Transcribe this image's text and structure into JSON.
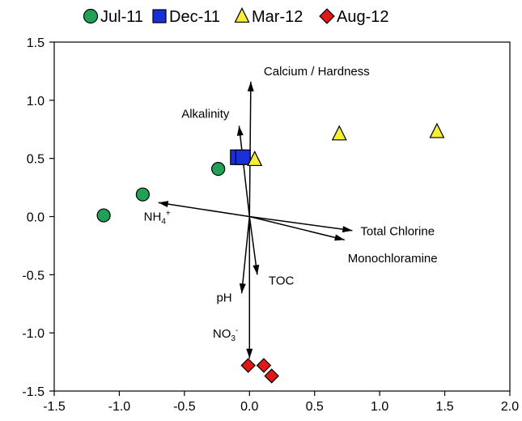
{
  "chart_data": {
    "type": "scatter",
    "title": "",
    "xlabel": "",
    "ylabel": "",
    "xlim": [
      -1.5,
      2.0
    ],
    "ylim": [
      -1.5,
      1.5
    ],
    "x_ticks": [
      -1.5,
      -1.0,
      -0.5,
      0.0,
      0.5,
      1.0,
      1.5,
      2.0
    ],
    "y_ticks": [
      -1.5,
      -1.0,
      -0.5,
      0.0,
      0.5,
      1.0,
      1.5
    ],
    "x_tick_labels": [
      "-1.5",
      "-1.0",
      "-0.5",
      "0.0",
      "0.5",
      "1.0",
      "1.5",
      "2.0"
    ],
    "y_tick_labels": [
      "-1.5",
      "-1.0",
      "-0.5",
      "0.0",
      "0.5",
      "1.0",
      "1.5"
    ],
    "grid": false,
    "legend_position": "top",
    "series": [
      {
        "name": "Jul-11",
        "marker": "circle",
        "color": "#22a055",
        "points": [
          [
            -1.12,
            0.01
          ],
          [
            -0.82,
            0.19
          ],
          [
            -0.24,
            0.41
          ]
        ]
      },
      {
        "name": "Dec-11",
        "marker": "square",
        "color": "#1a2fd6",
        "points": [
          [
            -0.09,
            0.51
          ],
          [
            -0.05,
            0.51
          ]
        ]
      },
      {
        "name": "Mar-12",
        "marker": "triangle",
        "color": "#f5ee31",
        "points": [
          [
            0.04,
            0.49
          ],
          [
            0.69,
            0.71
          ],
          [
            1.44,
            0.73
          ]
        ]
      },
      {
        "name": "Aug-12",
        "marker": "diamond",
        "color": "#e01818",
        "points": [
          [
            -0.01,
            -1.28
          ],
          [
            0.11,
            -1.28
          ],
          [
            0.17,
            -1.37
          ]
        ]
      }
    ],
    "vectors": [
      {
        "label": "Calcium / Hardness",
        "sup": "",
        "sub": "",
        "end": [
          0.01,
          1.16
        ]
      },
      {
        "label": "Alkalinity",
        "sup": "",
        "sub": "",
        "end": [
          -0.08,
          0.78
        ]
      },
      {
        "label": "NH",
        "sub": "4",
        "sup": "+",
        "end": [
          -0.7,
          0.12
        ]
      },
      {
        "label": "Total Chlorine",
        "sup": "",
        "sub": "",
        "end": [
          0.79,
          -0.12
        ]
      },
      {
        "label": "Monochloramine",
        "sup": "",
        "sub": "",
        "end": [
          0.73,
          -0.2
        ]
      },
      {
        "label": "TOC",
        "sup": "",
        "sub": "",
        "end": [
          0.06,
          -0.5
        ]
      },
      {
        "label": "pH",
        "sup": "",
        "sub": "",
        "end": [
          -0.06,
          -0.66
        ]
      },
      {
        "label": "NO",
        "sub": "3",
        "sup": "-",
        "end": [
          0.0,
          -1.22
        ]
      }
    ]
  }
}
